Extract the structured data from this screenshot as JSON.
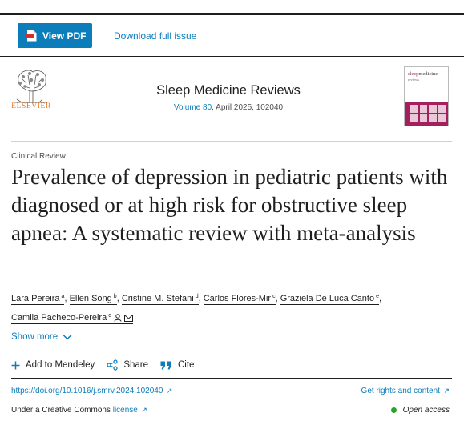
{
  "toolbar": {
    "view_pdf_label": "View PDF",
    "download_label": "Download full issue"
  },
  "journal": {
    "publisher": "ELSEVIER",
    "title": "Sleep Medicine Reviews",
    "volume_link": "Volume 80",
    "issue_rest": ", April 2025, 102040",
    "cover_title_a": "sleep",
    "cover_title_b": "medicine",
    "cover_title_c": "reviews"
  },
  "article": {
    "type": "Clinical Review",
    "title": "Prevalence of depression in pediatric patients with diagnosed or at high risk for obstructive sleep apnea: A systematic review with meta-analysis",
    "authors": [
      {
        "name": "Lara Pereira",
        "aff": "a"
      },
      {
        "name": "Ellen Song",
        "aff": "b"
      },
      {
        "name": "Cristine M. Stefani",
        "aff": "d"
      },
      {
        "name": "Carlos Flores-Mir",
        "aff": "c"
      },
      {
        "name": "Graziela De Luca Canto",
        "aff": "e"
      },
      {
        "name": "Camila Pacheco-Pereira",
        "aff": "c"
      }
    ],
    "author_sep": ",",
    "show_more": "Show more"
  },
  "tools": {
    "mendeley": "Add to Mendeley",
    "share": "Share",
    "cite": "Cite"
  },
  "footer": {
    "doi": "https://doi.org/10.1016/j.smrv.2024.102040",
    "rights": "Get rights and content",
    "license_prefix": "Under a Creative Commons ",
    "license_link": "license",
    "open_access": "Open access"
  },
  "colors": {
    "link": "#0c7dbb",
    "open_access_dot": "#29a329",
    "publisher_orange": "#e87722"
  },
  "icons": {
    "pdf": "pdf-file-icon",
    "plus": "plus-icon",
    "share": "share-icon",
    "cite": "quote-icon",
    "chevron": "chevron-down-icon",
    "person": "person-icon",
    "mail": "mail-icon",
    "external": "external-link-icon"
  }
}
